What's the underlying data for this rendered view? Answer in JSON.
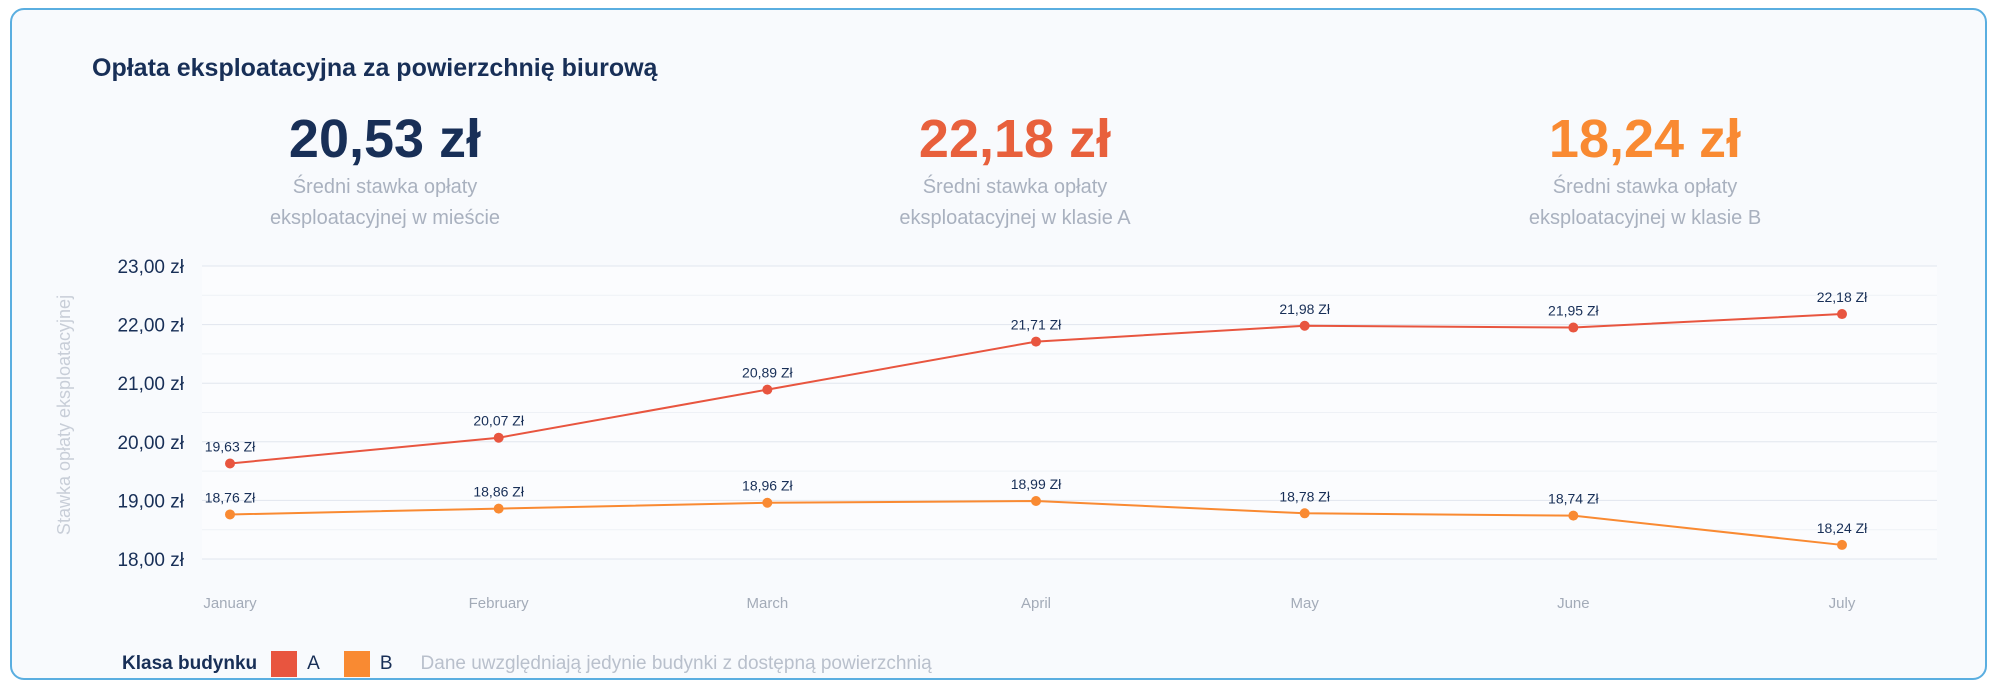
{
  "title": "Opłata eksploatacyjna za powierzchnię biurową",
  "kpis": [
    {
      "value": "20,53 zł",
      "label": "Średni stawka opłaty\neksploatacyjnej w mieście",
      "color": "#182f57"
    },
    {
      "value": "22,18 zł",
      "label": "Średni stawka opłaty\neksploatacyjnej w klasie A",
      "color": "#e8603c"
    },
    {
      "value": "18,24 zł",
      "label": "Średni stawka opłaty\neksploatacyjnej w klasie B",
      "color": "#f98a32"
    }
  ],
  "legend": {
    "title": "Klasa budynku",
    "note": "Dane uwzględniają jedynie budynki z dostępną powierzchnią"
  },
  "chart_data": {
    "type": "line",
    "categories": [
      "January",
      "February",
      "March",
      "April",
      "May",
      "June",
      "July"
    ],
    "series": [
      {
        "name": "A",
        "color": "#e8553f",
        "values": [
          19.63,
          20.07,
          20.89,
          21.71,
          21.98,
          21.95,
          22.18
        ],
        "labels": [
          "19,63 Zł",
          "20,07 Zł",
          "20,89 Zł",
          "21,71 Zł",
          "21,98 Zł",
          "21,95 Zł",
          "22,18 Zł"
        ]
      },
      {
        "name": "B",
        "color": "#f98a32",
        "values": [
          18.76,
          18.86,
          18.96,
          18.99,
          18.78,
          18.74,
          18.24
        ],
        "labels": [
          "18,76 Zł",
          "18,86 Zł",
          "18,96 Zł",
          "18,99 Zł",
          "18,78 Zł",
          "18,74 Zł",
          "18,24 Zł"
        ]
      }
    ],
    "ylabel": "Stawka opłaty eksploatacyjnej",
    "yticks": [
      {
        "value": 23,
        "label": "23,00 zł"
      },
      {
        "value": 22,
        "label": "22,00 zł"
      },
      {
        "value": 21,
        "label": "21,00 zł"
      },
      {
        "value": 20,
        "label": "20,00 zł"
      },
      {
        "value": 19,
        "label": "19,00 zł"
      },
      {
        "value": 18,
        "label": "18,00  zł"
      }
    ],
    "ylim": [
      18,
      23
    ],
    "grid": true,
    "legend_position": "bottom-left"
  }
}
